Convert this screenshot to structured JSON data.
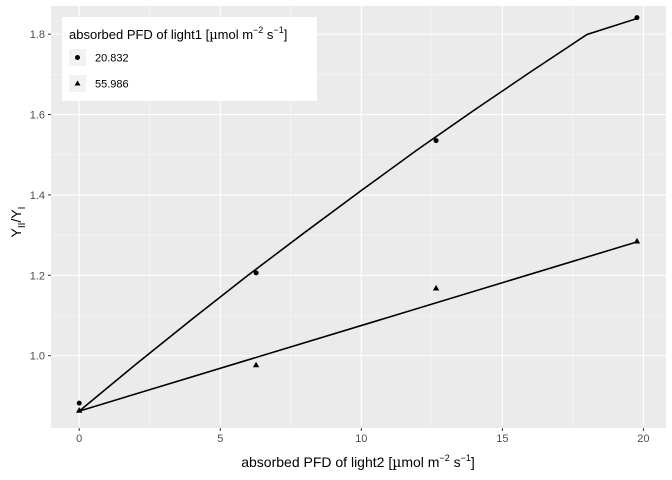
{
  "chart_data": {
    "type": "scatter",
    "x_axis": {
      "label_main": "absorbed PFD of light2 [",
      "label_unit_mu": "µ",
      "label_unit_a": "mol m",
      "label_unit_a_sup": "−2",
      "label_unit_b": " s",
      "label_unit_b_sup": "−1",
      "label_close": "]",
      "range": [
        -1.0,
        20.8
      ],
      "ticks": [
        0,
        5,
        10,
        15,
        20
      ],
      "tick_labels": [
        "0",
        "5",
        "10",
        "15",
        "20"
      ]
    },
    "y_axis": {
      "label_main": "Y",
      "label_sub1": "II",
      "label_slash": "/Y",
      "label_sub2": "I",
      "range": [
        0.82,
        1.87
      ],
      "ticks": [
        1.0,
        1.2,
        1.4,
        1.6,
        1.8
      ],
      "tick_labels": [
        "1.0",
        "1.2",
        "1.4",
        "1.6",
        "1.8"
      ]
    },
    "grid": true,
    "legend": {
      "placement": "top-left",
      "title_main": "absorbed PFD of light1 [",
      "title_mu": "µ",
      "title_a": "mol m",
      "title_a_sup": "−2",
      "title_b": " s",
      "title_b_sup": "−1",
      "title_close": "]"
    },
    "series": [
      {
        "name": "20.832",
        "marker": "circle",
        "points": [
          [
            0,
            0.882
          ],
          [
            6.27,
            1.206
          ],
          [
            12.65,
            1.535
          ],
          [
            19.77,
            1.841
          ]
        ],
        "fit": [
          [
            0,
            0.862
          ],
          [
            2,
            0.978
          ],
          [
            4,
            1.091
          ],
          [
            6,
            1.201
          ],
          [
            8,
            1.307
          ],
          [
            10,
            1.411
          ],
          [
            12,
            1.513
          ],
          [
            14,
            1.611
          ],
          [
            16,
            1.706
          ],
          [
            18,
            1.799
          ],
          [
            19.77,
            1.839
          ]
        ]
      },
      {
        "name": "55.986",
        "marker": "triangle",
        "points": [
          [
            0,
            0.864
          ],
          [
            6.27,
            0.977
          ],
          [
            12.65,
            1.168
          ],
          [
            19.77,
            1.285
          ]
        ],
        "fit": [
          [
            0,
            0.862
          ],
          [
            19.77,
            1.283
          ]
        ]
      }
    ]
  }
}
